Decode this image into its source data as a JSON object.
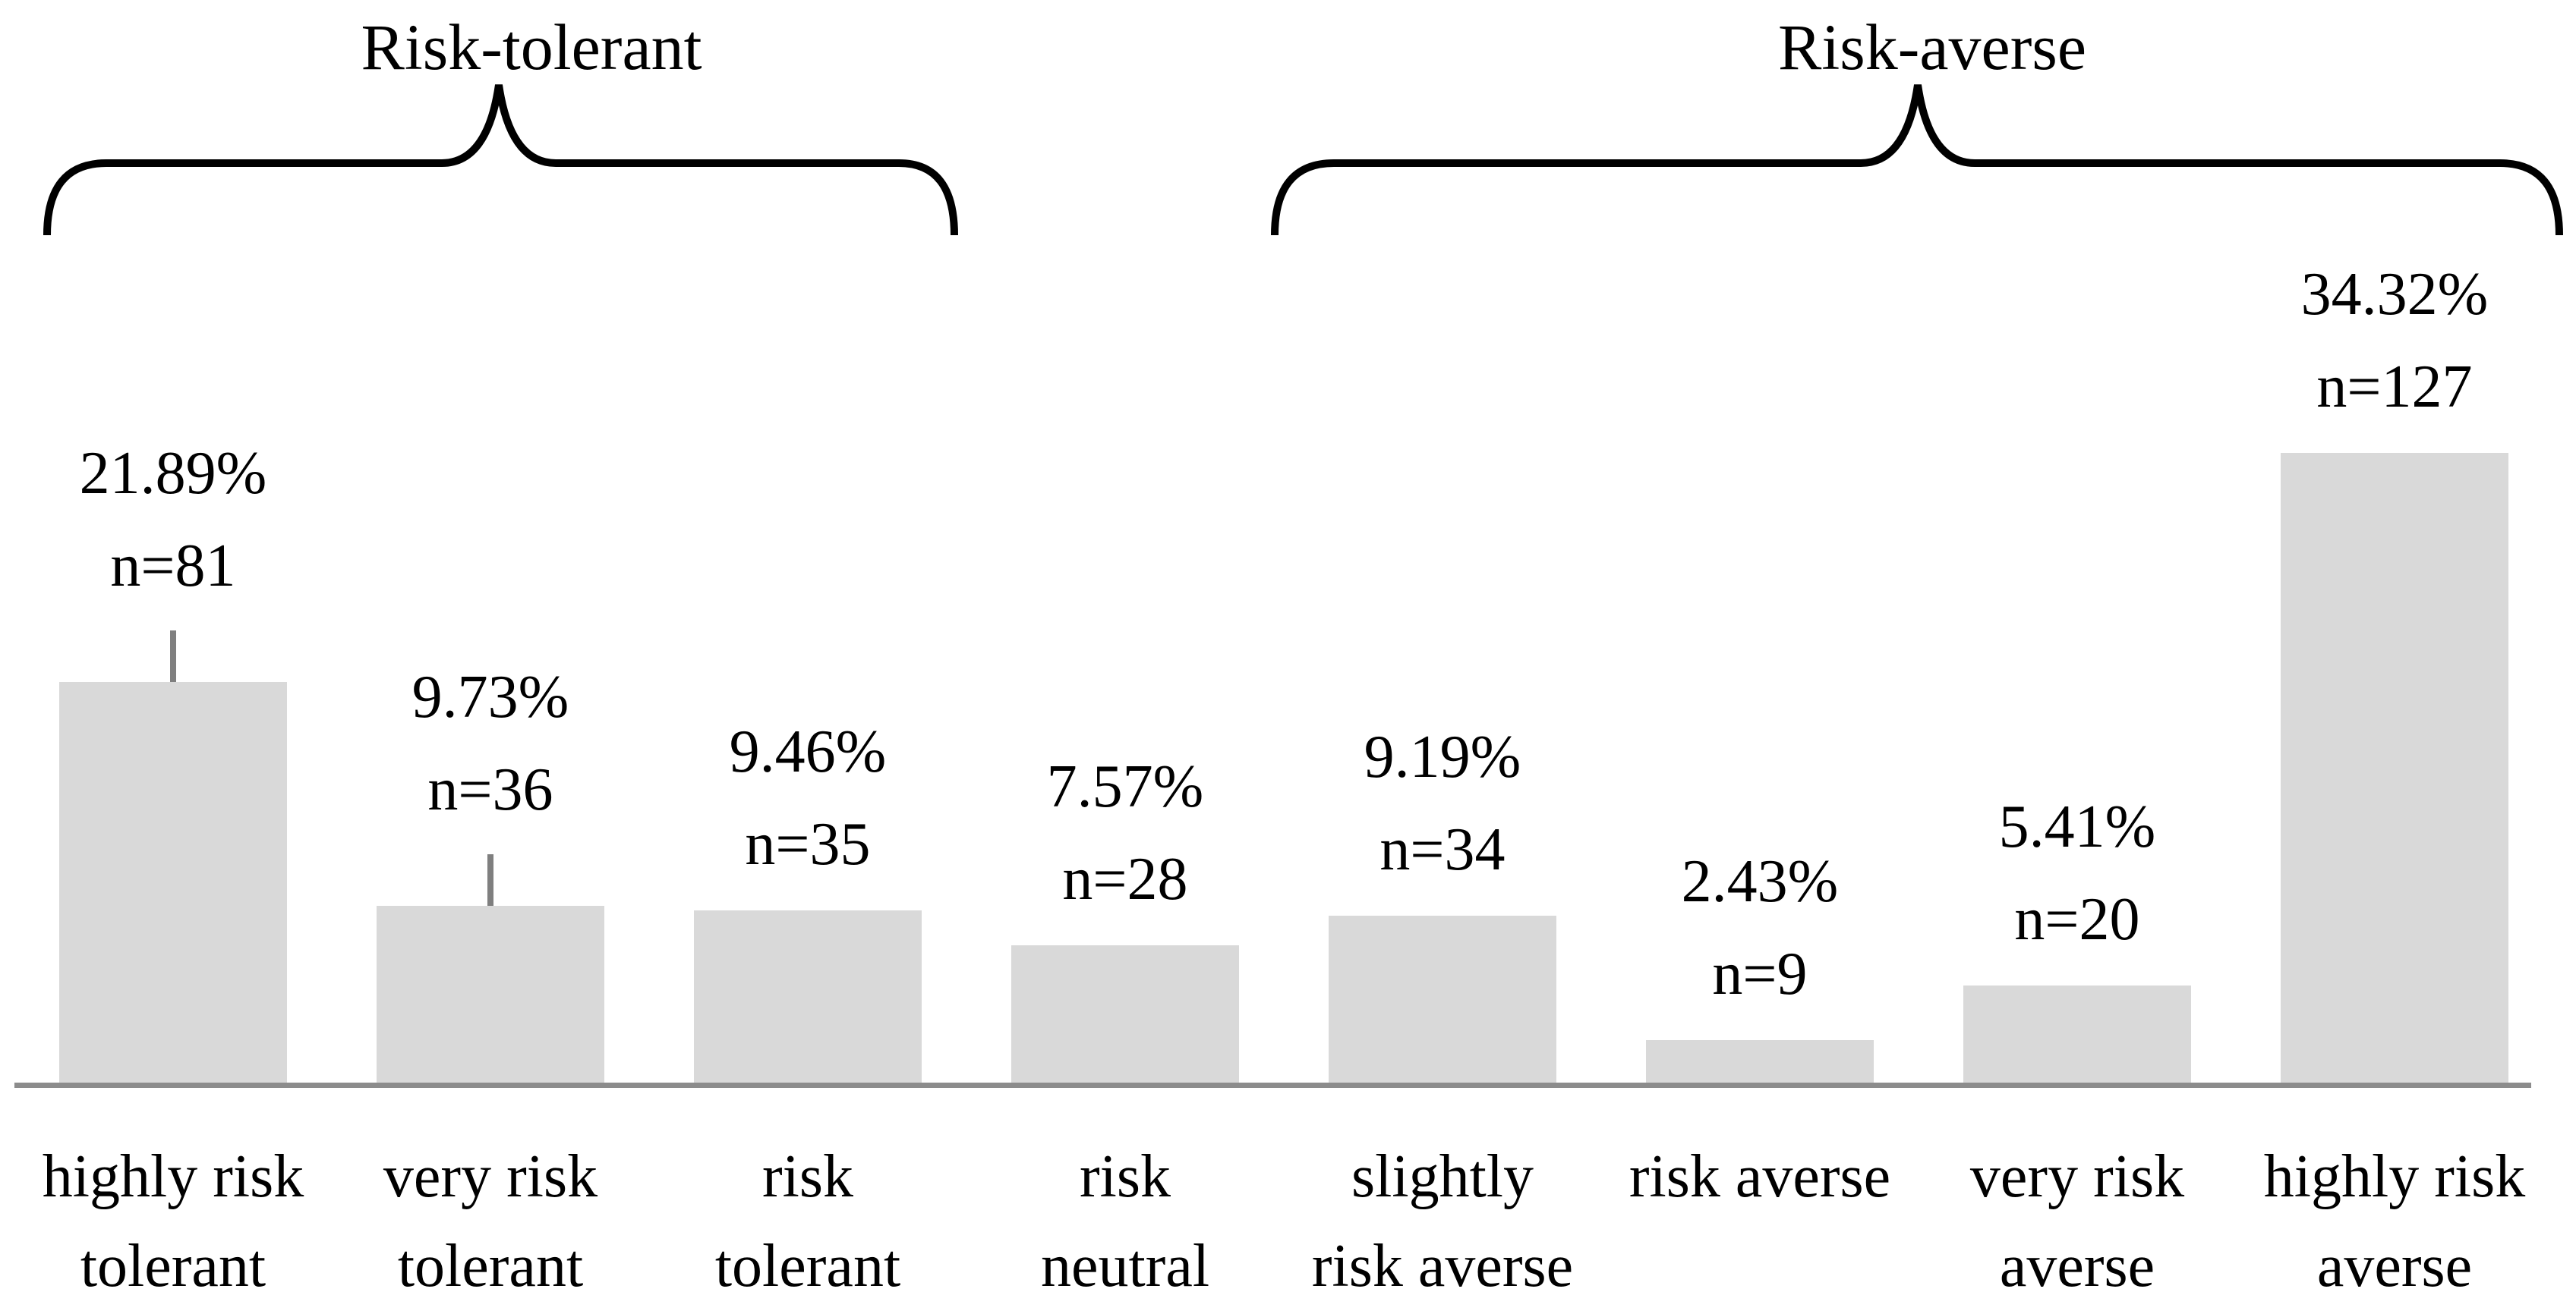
{
  "chart_data": {
    "type": "bar",
    "title": "",
    "y_axis_visible": false,
    "grid": false,
    "legend": false,
    "categories": [
      "highly risk tolerant",
      "very risk tolerant",
      "risk tolerant",
      "risk neutral",
      "slightly risk averse",
      "risk averse",
      "very risk averse",
      "highly risk averse"
    ],
    "values_percent": [
      21.89,
      9.73,
      9.46,
      7.57,
      9.19,
      2.43,
      5.41,
      34.32
    ],
    "counts_n": [
      81,
      36,
      35,
      28,
      34,
      9,
      20,
      127
    ],
    "bars": [
      {
        "category_lines": [
          "highly risk",
          "tolerant"
        ],
        "pct": 21.89,
        "n": 81,
        "pct_label": "21.89%",
        "n_label": "n=81",
        "leader_tick": true
      },
      {
        "category_lines": [
          "very risk",
          "tolerant"
        ],
        "pct": 9.73,
        "n": 36,
        "pct_label": "9.73%",
        "n_label": "n=36",
        "leader_tick": true
      },
      {
        "category_lines": [
          "risk",
          "tolerant"
        ],
        "pct": 9.46,
        "n": 35,
        "pct_label": "9.46%",
        "n_label": "n=35",
        "leader_tick": false
      },
      {
        "category_lines": [
          "risk",
          "neutral"
        ],
        "pct": 7.57,
        "n": 28,
        "pct_label": "7.57%",
        "n_label": "n=28",
        "leader_tick": false
      },
      {
        "category_lines": [
          "slightly",
          "risk averse"
        ],
        "pct": 9.19,
        "n": 34,
        "pct_label": "9.19%",
        "n_label": "n=34",
        "leader_tick": false
      },
      {
        "category_lines": [
          "risk averse"
        ],
        "pct": 2.43,
        "n": 9,
        "pct_label": "2.43%",
        "n_label": "n=9",
        "leader_tick": false
      },
      {
        "category_lines": [
          "very risk",
          "averse"
        ],
        "pct": 5.41,
        "n": 20,
        "pct_label": "5.41%",
        "n_label": "n=20",
        "leader_tick": false
      },
      {
        "category_lines": [
          "highly risk",
          "averse"
        ],
        "pct": 34.32,
        "n": 127,
        "pct_label": "34.32%",
        "n_label": "n=127",
        "leader_tick": false
      }
    ],
    "groups": [
      {
        "label": "Risk-tolerant",
        "covers_categories": [
          "highly risk tolerant",
          "very risk tolerant",
          "risk tolerant"
        ]
      },
      {
        "label": "Risk-averse",
        "covers_categories": [
          "slightly risk averse",
          "risk averse",
          "very risk averse",
          "highly risk averse"
        ]
      }
    ],
    "colors": {
      "bar_fill": "#d9d9d9",
      "axis_line": "#8c8c8c",
      "leader_tick": "#7f7f7f",
      "brace": "#000000",
      "text": "#000000"
    }
  }
}
